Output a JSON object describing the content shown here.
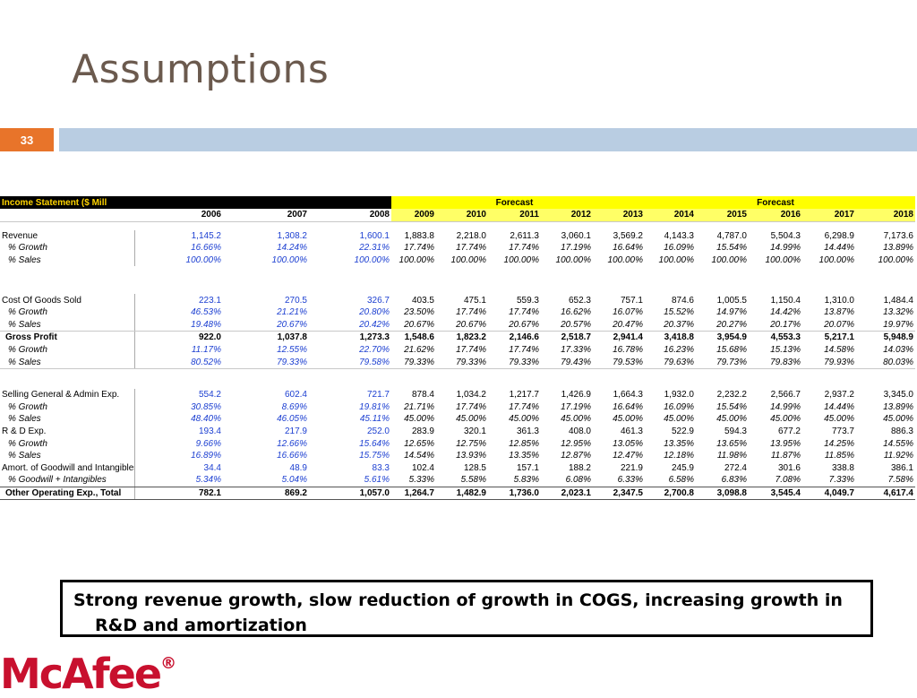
{
  "slide": {
    "title": "Assumptions",
    "page_number": "33",
    "footnote_line1": "Strong revenue growth, slow reduction of growth in COGS, increasing growth in",
    "footnote_line2": "R&D and amortization",
    "logo_text": "McAfee",
    "logo_mark": "®",
    "accent_color": "#e8742a",
    "bar_color": "#b9cde2",
    "logo_color": "#c8102e"
  },
  "table": {
    "title": "Income Statement ($ Mill",
    "forecast_label_1": "Forecast",
    "forecast_label_2": "Forecast",
    "years": [
      "2006",
      "2007",
      "2008",
      "2009",
      "2010",
      "2011",
      "2012",
      "2013",
      "2014",
      "2015",
      "2016",
      "2017",
      "2018"
    ],
    "rows": [
      {
        "label": "Revenue",
        "values": [
          "1,145.2",
          "1,308.2",
          "1,600.1",
          "1,883.8",
          "2,218.0",
          "2,611.3",
          "3,060.1",
          "3,569.2",
          "4,143.3",
          "4,787.0",
          "5,504.3",
          "6,298.9",
          "7,173.6"
        ]
      },
      {
        "label": "% Growth",
        "values": [
          "16.66%",
          "14.24%",
          "22.31%",
          "17.74%",
          "17.74%",
          "17.74%",
          "17.19%",
          "16.64%",
          "16.09%",
          "15.54%",
          "14.99%",
          "14.44%",
          "13.89%"
        ]
      },
      {
        "label": "% Sales",
        "values": [
          "100.00%",
          "100.00%",
          "100.00%",
          "100.00%",
          "100.00%",
          "100.00%",
          "100.00%",
          "100.00%",
          "100.00%",
          "100.00%",
          "100.00%",
          "100.00%",
          "100.00%"
        ]
      },
      {
        "label": "Cost Of Goods Sold",
        "values": [
          "223.1",
          "270.5",
          "326.7",
          "403.5",
          "475.1",
          "559.3",
          "652.3",
          "757.1",
          "874.6",
          "1,005.5",
          "1,150.4",
          "1,310.0",
          "1,484.4"
        ]
      },
      {
        "label": "% Growth",
        "values": [
          "46.53%",
          "21.21%",
          "20.80%",
          "23.50%",
          "17.74%",
          "17.74%",
          "16.62%",
          "16.07%",
          "15.52%",
          "14.97%",
          "14.42%",
          "13.87%",
          "13.32%"
        ]
      },
      {
        "label": "% Sales",
        "values": [
          "19.48%",
          "20.67%",
          "20.42%",
          "20.67%",
          "20.67%",
          "20.67%",
          "20.57%",
          "20.47%",
          "20.37%",
          "20.27%",
          "20.17%",
          "20.07%",
          "19.97%"
        ]
      },
      {
        "label": "Gross Profit",
        "values": [
          "922.0",
          "1,037.8",
          "1,273.3",
          "1,548.6",
          "1,823.2",
          "2,146.6",
          "2,518.7",
          "2,941.4",
          "3,418.8",
          "3,954.9",
          "4,553.3",
          "5,217.1",
          "5,948.9"
        ]
      },
      {
        "label": "% Growth",
        "values": [
          "11.17%",
          "12.55%",
          "22.70%",
          "21.62%",
          "17.74%",
          "17.74%",
          "17.33%",
          "16.78%",
          "16.23%",
          "15.68%",
          "15.13%",
          "14.58%",
          "14.03%"
        ]
      },
      {
        "label": "% Sales",
        "values": [
          "80.52%",
          "79.33%",
          "79.58%",
          "79.33%",
          "79.33%",
          "79.33%",
          "79.43%",
          "79.53%",
          "79.63%",
          "79.73%",
          "79.83%",
          "79.93%",
          "80.03%"
        ]
      },
      {
        "label": "Selling General & Admin Exp.",
        "values": [
          "554.2",
          "602.4",
          "721.7",
          "878.4",
          "1,034.2",
          "1,217.7",
          "1,426.9",
          "1,664.3",
          "1,932.0",
          "2,232.2",
          "2,566.7",
          "2,937.2",
          "3,345.0"
        ]
      },
      {
        "label": "% Growth",
        "values": [
          "30.85%",
          "8.69%",
          "19.81%",
          "21.71%",
          "17.74%",
          "17.74%",
          "17.19%",
          "16.64%",
          "16.09%",
          "15.54%",
          "14.99%",
          "14.44%",
          "13.89%"
        ]
      },
      {
        "label": "% Sales",
        "values": [
          "48.40%",
          "46.05%",
          "45.11%",
          "45.00%",
          "45.00%",
          "45.00%",
          "45.00%",
          "45.00%",
          "45.00%",
          "45.00%",
          "45.00%",
          "45.00%",
          "45.00%"
        ]
      },
      {
        "label": "R & D Exp.",
        "values": [
          "193.4",
          "217.9",
          "252.0",
          "283.9",
          "320.1",
          "361.3",
          "408.0",
          "461.3",
          "522.9",
          "594.3",
          "677.2",
          "773.7",
          "886.3"
        ]
      },
      {
        "label": "% Growth",
        "values": [
          "9.66%",
          "12.66%",
          "15.64%",
          "12.65%",
          "12.75%",
          "12.85%",
          "12.95%",
          "13.05%",
          "13.35%",
          "13.65%",
          "13.95%",
          "14.25%",
          "14.55%"
        ]
      },
      {
        "label": "% Sales",
        "values": [
          "16.89%",
          "16.66%",
          "15.75%",
          "14.54%",
          "13.93%",
          "13.35%",
          "12.87%",
          "12.47%",
          "12.18%",
          "11.98%",
          "11.87%",
          "11.85%",
          "11.92%"
        ]
      },
      {
        "label": "Amort. of Goodwill and Intangibles",
        "values": [
          "34.4",
          "48.9",
          "83.3",
          "102.4",
          "128.5",
          "157.1",
          "188.2",
          "221.9",
          "245.9",
          "272.4",
          "301.6",
          "338.8",
          "386.1"
        ]
      },
      {
        "label": "% Goodwill + Intangibles",
        "values": [
          "5.34%",
          "5.04%",
          "5.61%",
          "5.33%",
          "5.58%",
          "5.83%",
          "6.08%",
          "6.33%",
          "6.58%",
          "6.83%",
          "7.08%",
          "7.33%",
          "7.58%"
        ]
      },
      {
        "label": "Other Operating Exp., Total",
        "values": [
          "782.1",
          "869.2",
          "1,057.0",
          "1,264.7",
          "1,482.9",
          "1,736.0",
          "2,023.1",
          "2,347.5",
          "2,700.8",
          "3,098.8",
          "3,545.4",
          "4,049.7",
          "4,617.4"
        ]
      }
    ]
  }
}
